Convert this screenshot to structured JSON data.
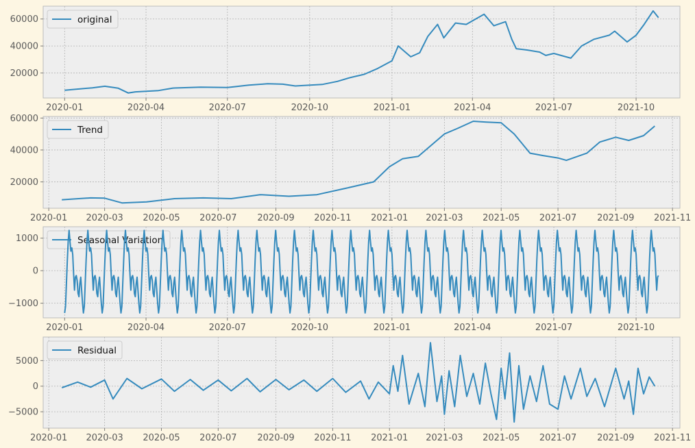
{
  "colors": {
    "line": "#348abd",
    "plot_bg": "#eeeeee",
    "figure_bg": "#fdf6e3",
    "grid": "#b2b2b2",
    "axis_frame": "#bcbcbc"
  },
  "chart_data": [
    {
      "type": "line",
      "legend": "original",
      "legend_position": "upper-left",
      "grid": true,
      "xlim": [
        "2019-12-08",
        "2021-11-19"
      ],
      "ylim": [
        1500,
        69500
      ],
      "xticks": [
        "2020-01-01",
        "2020-04-01",
        "2020-07-01",
        "2020-10-01",
        "2021-01-01",
        "2021-04-01",
        "2021-07-01",
        "2021-10-01"
      ],
      "xtick_labels": [
        "2020-01",
        "2020-04",
        "2020-07",
        "2020-10",
        "2021-01",
        "2021-04",
        "2021-07",
        "2021-10"
      ],
      "yticks": [
        20000,
        40000,
        60000
      ],
      "ytick_labels": [
        "20000",
        "40000",
        "60000"
      ],
      "series": [
        {
          "x": [
            "2020-01-01",
            "2020-02-01",
            "2020-02-15",
            "2020-03-01",
            "2020-03-12",
            "2020-03-20",
            "2020-04-15",
            "2020-05-01",
            "2020-06-01",
            "2020-07-01",
            "2020-07-25",
            "2020-08-15",
            "2020-09-01",
            "2020-09-15",
            "2020-10-15",
            "2020-11-01",
            "2020-11-15",
            "2020-12-01",
            "2020-12-15",
            "2021-01-01",
            "2021-01-08",
            "2021-01-15",
            "2021-01-22",
            "2021-02-01",
            "2021-02-10",
            "2021-02-21",
            "2021-02-28",
            "2021-03-13",
            "2021-03-25",
            "2021-04-14",
            "2021-04-25",
            "2021-05-08",
            "2021-05-15",
            "2021-05-20",
            "2021-06-01",
            "2021-06-15",
            "2021-06-22",
            "2021-07-01",
            "2021-07-20",
            "2021-08-01",
            "2021-08-15",
            "2021-09-01",
            "2021-09-07",
            "2021-09-21",
            "2021-10-01",
            "2021-10-10",
            "2021-10-20",
            "2021-10-26"
          ],
          "y": [
            7200,
            9000,
            10200,
            8700,
            5200,
            6000,
            7000,
            8800,
            9500,
            9200,
            11000,
            12000,
            11700,
            10400,
            11500,
            13800,
            16500,
            19000,
            23000,
            29000,
            40000,
            36000,
            32000,
            35000,
            47000,
            56000,
            46000,
            57000,
            56000,
            63500,
            55000,
            58000,
            45000,
            38000,
            37000,
            35500,
            33000,
            34500,
            31000,
            40000,
            45000,
            48000,
            51000,
            43000,
            48000,
            56000,
            66000,
            61000
          ]
        }
      ]
    },
    {
      "type": "line",
      "legend": "Trend",
      "legend_position": "upper-left",
      "grid": true,
      "xlim": [
        "2019-12-26",
        "2021-11-09"
      ],
      "ylim": [
        3500,
        61000
      ],
      "xticks": [
        "2020-01-01",
        "2020-03-01",
        "2020-05-01",
        "2020-07-01",
        "2020-09-01",
        "2020-11-01",
        "2021-01-01",
        "2021-03-01",
        "2021-05-01",
        "2021-07-01",
        "2021-09-01",
        "2021-11-01"
      ],
      "xtick_labels": [
        "2020-01",
        "2020-03",
        "2020-05",
        "2020-07",
        "2020-09",
        "2020-11",
        "2021-01",
        "2021-03",
        "2021-05",
        "2021-07",
        "2021-09",
        "2021-11"
      ],
      "yticks": [
        20000,
        40000,
        60000
      ],
      "ytick_labels": [
        "20000",
        "40000",
        "60000"
      ],
      "series": [
        {
          "x": [
            "2020-01-15",
            "2020-02-15",
            "2020-03-01",
            "2020-03-20",
            "2020-04-15",
            "2020-05-15",
            "2020-06-15",
            "2020-07-15",
            "2020-08-15",
            "2020-09-15",
            "2020-10-15",
            "2020-11-15",
            "2020-12-15",
            "2021-01-01",
            "2021-01-15",
            "2021-02-01",
            "2021-02-15",
            "2021-03-01",
            "2021-03-15",
            "2021-04-01",
            "2021-04-15",
            "2021-05-01",
            "2021-05-15",
            "2021-06-01",
            "2021-06-15",
            "2021-07-01",
            "2021-07-10",
            "2021-08-01",
            "2021-08-15",
            "2021-09-01",
            "2021-09-15",
            "2021-10-01",
            "2021-10-13"
          ],
          "y": [
            8800,
            10000,
            9800,
            6800,
            7500,
            9500,
            10000,
            9500,
            12000,
            11000,
            12000,
            16000,
            20000,
            29500,
            34500,
            36000,
            43000,
            50000,
            53500,
            58000,
            57500,
            57000,
            50000,
            38000,
            36500,
            35000,
            33500,
            38000,
            45000,
            48000,
            46000,
            49000,
            55000
          ]
        }
      ]
    },
    {
      "type": "line",
      "legend": "Seasonal Variation",
      "legend_position": "upper-left",
      "grid": true,
      "xlim": [
        "2019-12-08",
        "2021-11-19"
      ],
      "ylim": [
        -1450,
        1350
      ],
      "xticks": [
        "2020-01-01",
        "2020-04-01",
        "2020-07-01",
        "2020-10-01",
        "2021-01-01",
        "2021-04-01",
        "2021-07-01",
        "2021-10-01"
      ],
      "xtick_labels": [
        "2020-01",
        "2020-04",
        "2020-07",
        "2020-10",
        "2021-01",
        "2021-04",
        "2021-07",
        "2021-10"
      ],
      "yticks": [
        -1000,
        0,
        1000
      ],
      "ytick_labels": [
        "−1000",
        "0",
        "1000"
      ],
      "series": [
        {
          "x_start": "2020-01-01",
          "x_end": "2021-10-26",
          "period_days": 21,
          "cycle": [
            -1300,
            -1100,
            -400,
            300,
            900,
            1240,
            900,
            600,
            700,
            500,
            -100,
            -600,
            -200,
            -150,
            -300,
            -700,
            -800,
            -400,
            -200,
            -600,
            -1000
          ]
        }
      ]
    },
    {
      "type": "line",
      "legend": "Residual",
      "legend_position": "upper-left",
      "grid": true,
      "xlim": [
        "2019-12-26",
        "2021-11-09"
      ],
      "ylim": [
        -8200,
        9600
      ],
      "xticks": [
        "2020-01-01",
        "2020-03-01",
        "2020-05-01",
        "2020-07-01",
        "2020-09-01",
        "2020-11-01",
        "2021-01-01",
        "2021-03-01",
        "2021-05-01",
        "2021-07-01",
        "2021-09-01",
        "2021-11-01"
      ],
      "xtick_labels": [
        "2020-01",
        "2020-03",
        "2020-05",
        "2020-07",
        "2020-09",
        "2020-11",
        "2021-01",
        "2021-03",
        "2021-05",
        "2021-07",
        "2021-09",
        "2021-11"
      ],
      "yticks": [
        -5000,
        0,
        5000
      ],
      "ytick_labels": [
        "−5000",
        "0",
        "5000"
      ],
      "series": [
        {
          "x": [
            "2020-01-15",
            "2020-02-01",
            "2020-02-15",
            "2020-03-01",
            "2020-03-10",
            "2020-03-25",
            "2020-04-10",
            "2020-05-01",
            "2020-05-15",
            "2020-06-01",
            "2020-06-15",
            "2020-07-01",
            "2020-07-15",
            "2020-08-01",
            "2020-08-15",
            "2020-09-01",
            "2020-09-15",
            "2020-10-01",
            "2020-10-15",
            "2020-11-01",
            "2020-11-15",
            "2020-12-01",
            "2020-12-10",
            "2020-12-20",
            "2021-01-01",
            "2021-01-05",
            "2021-01-10",
            "2021-01-15",
            "2021-01-22",
            "2021-02-01",
            "2021-02-08",
            "2021-02-14",
            "2021-02-21",
            "2021-02-26",
            "2021-03-01",
            "2021-03-06",
            "2021-03-12",
            "2021-03-18",
            "2021-03-25",
            "2021-04-01",
            "2021-04-08",
            "2021-04-14",
            "2021-04-20",
            "2021-04-26",
            "2021-05-01",
            "2021-05-05",
            "2021-05-10",
            "2021-05-15",
            "2021-05-20",
            "2021-05-25",
            "2021-06-01",
            "2021-06-08",
            "2021-06-15",
            "2021-06-22",
            "2021-07-01",
            "2021-07-08",
            "2021-07-15",
            "2021-07-25",
            "2021-08-01",
            "2021-08-10",
            "2021-08-20",
            "2021-09-01",
            "2021-09-10",
            "2021-09-15",
            "2021-09-20",
            "2021-09-25",
            "2021-10-01",
            "2021-10-07",
            "2021-10-13"
          ],
          "y": [
            -300,
            800,
            -200,
            1200,
            -2500,
            1500,
            -500,
            1400,
            -1000,
            1300,
            -800,
            1200,
            -900,
            1500,
            -1100,
            1300,
            -700,
            1200,
            -1000,
            1500,
            -1200,
            1000,
            -2500,
            800,
            -1500,
            4000,
            -1000,
            6000,
            -3500,
            2500,
            -4000,
            8500,
            -3000,
            2000,
            -5500,
            3000,
            -4000,
            6000,
            -2000,
            2500,
            -3500,
            4500,
            -1500,
            -6500,
            3500,
            -2500,
            6500,
            -7000,
            4000,
            -4500,
            2000,
            -3000,
            4000,
            -3500,
            -4500,
            2000,
            -2500,
            3500,
            -2000,
            1500,
            -4000,
            3500,
            -2500,
            1000,
            -5500,
            3500,
            -1500,
            1800,
            0
          ]
        }
      ]
    }
  ]
}
